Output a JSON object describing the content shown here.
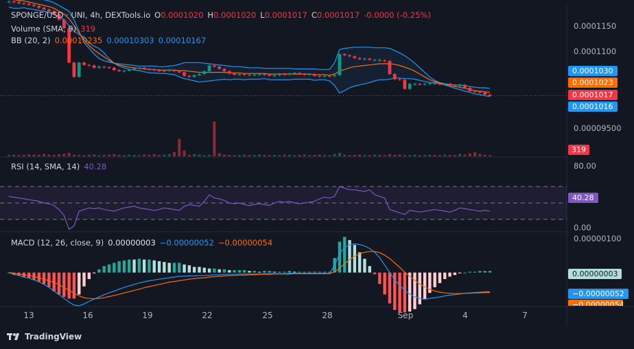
{
  "header": {
    "symbol": "SPONGE/USD · UNI, 4h, DEXTools.io",
    "open_label": "O",
    "open": "0.0001020",
    "high_label": "H",
    "high": "0.0001020",
    "low_label": "L",
    "low": "0.0001017",
    "close_label": "C",
    "close": "0.0001017",
    "change": "-0.0000 (-0.25%)"
  },
  "volume_legend": {
    "label": "Volume (SMA, 9)",
    "value": "319"
  },
  "bb_legend": {
    "label": "BB (20, 2)",
    "basis": "0.00010235",
    "upper": "0.00010303",
    "lower": "0.00010167"
  },
  "rsi_legend": {
    "label": "RSI (14, SMA, 14)",
    "value": "40.28"
  },
  "macd_legend": {
    "label": "MACD (12, 26, close, 9)",
    "hist": "0.00000003",
    "macd": "−0.00000052",
    "signal": "−0.00000054"
  },
  "price_axis": {
    "ticks": [
      "0.0001150",
      "0.0001100",
      "0.00009500"
    ]
  },
  "price_badges": {
    "upper": "0.0001030",
    "basis": "0.0001023",
    "close": "0.0001017",
    "lower": "0.0001016",
    "volume": "319"
  },
  "rsi_axis": {
    "ticks": [
      "80.00",
      "0.00"
    ],
    "badge": "40.28"
  },
  "macd_axis": {
    "ticks": [
      "0.00000100"
    ],
    "badge_hist": "0.00000003",
    "badge_macd": "−0.00000052",
    "badge_signal": "−0.00000054"
  },
  "time_axis": {
    "labels": [
      "13",
      "16",
      "19",
      "22",
      "25",
      "28",
      "Sep",
      "4",
      "7"
    ]
  },
  "footer": {
    "brand": "TradingView"
  },
  "colors": {
    "bg": "#131722",
    "up": "#089981",
    "down": "#f23645",
    "bb": "#2196f3",
    "basis": "#ff6d00",
    "rsi": "#7e57c2",
    "macd": "#2196f3",
    "signal": "#ff6d00",
    "hist_up_strong": "#26a69a",
    "hist_up_weak": "#b2dfdb",
    "hist_down_strong": "#ff5252",
    "hist_down_weak": "#ffcdd2"
  },
  "chart_data": {
    "type": "line",
    "price_ylim": [
      9.35e-05,
      0.0001175
    ],
    "price": [
      0.0001182,
      0.0001181,
      0.0001179,
      0.0001178,
      0.0001176,
      0.0001174,
      0.0001171,
      0.0001168,
      0.0001165,
      0.000116,
      0.000115,
      0.0001135,
      0.0001075,
      0.000105,
      0.0001075,
      0.0001071,
      0.000107,
      0.0001066,
      0.0001068,
      0.0001067,
      0.0001066,
      0.0001062,
      0.000106,
      0.0001061,
      0.0001063,
      0.0001065,
      0.0001066,
      0.0001064,
      0.0001063,
      0.0001062,
      0.000106,
      0.0001061,
      0.0001062,
      0.000106,
      0.0001058,
      0.0001052,
      0.000105,
      0.0001053,
      0.0001055,
      0.000106,
      0.000107,
      0.0001068,
      0.0001064,
      0.000106,
      0.0001056,
      0.0001054,
      0.0001055,
      0.0001054,
      0.0001053,
      0.0001054,
      0.0001055,
      0.0001054,
      0.0001052,
      0.0001053,
      0.0001055,
      0.0001054,
      0.0001056,
      0.0001057,
      0.0001055,
      0.0001054,
      0.0001055,
      0.0001052,
      0.0001051,
      0.0001052,
      0.0001051,
      0.0001053,
      0.000109,
      0.0001088,
      0.0001086,
      0.0001083,
      0.0001081,
      0.0001082,
      0.000108,
      0.000108,
      0.0001079,
      0.0001078,
      0.0001055,
      0.0001046,
      0.0001045,
      0.0001029,
      0.0001038,
      0.0001038,
      0.0001037,
      0.0001038,
      0.0001039,
      0.0001038,
      0.0001037,
      0.0001038,
      0.0001035,
      0.0001034,
      0.0001036,
      0.0001031,
      0.0001025,
      0.0001024,
      0.0001023,
      0.0001019,
      0.0001017
    ],
    "bb_upper": [
      0.00012,
      0.00012,
      0.0001198,
      0.0001195,
      0.0001193,
      0.000119,
      0.0001188,
      0.0001185,
      0.0001183,
      0.000118,
      0.0001175,
      0.000117,
      0.0001165,
      0.000115,
      0.000113,
      0.000111,
      0.00011,
      0.000109,
      0.0001082,
      0.0001078,
      0.0001076,
      0.0001074,
      0.0001073,
      0.0001072,
      0.0001071,
      0.000107,
      0.0001069,
      0.0001069,
      0.0001069,
      0.0001069,
      0.0001068,
      0.0001068,
      0.0001069,
      0.000107,
      0.0001072,
      0.0001075,
      0.0001075,
      0.0001075,
      0.0001075,
      0.0001074,
      0.0001073,
      0.0001072,
      0.0001071,
      0.000107,
      0.0001069,
      0.0001068,
      0.0001068,
      0.0001067,
      0.0001066,
      0.0001066,
      0.0001066,
      0.0001065,
      0.0001065,
      0.0001065,
      0.0001065,
      0.0001065,
      0.0001065,
      0.0001064,
      0.0001064,
      0.0001064,
      0.0001064,
      0.0001064,
      0.0001063,
      0.0001063,
      0.0001063,
      0.0001075,
      0.0001098,
      0.00011,
      0.0001101,
      0.0001102,
      0.0001102,
      0.0001102,
      0.0001102,
      0.0001101,
      0.0001101,
      0.0001101,
      0.00011,
      0.0001096,
      0.0001092,
      0.0001087,
      0.0001081,
      0.0001074,
      0.0001066,
      0.0001058,
      0.000105,
      0.0001044,
      0.000104,
      0.0001038,
      0.0001037,
      0.0001036,
      0.0001036,
      0.0001035,
      0.0001033,
      0.0001032,
      0.0001031,
      0.0001031,
      0.000103
    ],
    "bb_basis": [
      0.0001186,
      0.0001185,
      0.0001184,
      0.0001183,
      0.0001181,
      0.0001179,
      0.0001177,
      0.0001175,
      0.0001173,
      0.000117,
      0.0001165,
      0.000116,
      0.0001152,
      0.000114,
      0.0001127,
      0.0001115,
      0.0001105,
      0.0001097,
      0.0001091,
      0.0001085,
      0.0001079,
      0.0001074,
      0.0001071,
      0.0001069,
      0.0001067,
      0.0001066,
      0.0001065,
      0.0001064,
      0.0001063,
      0.0001063,
      0.0001062,
      0.0001062,
      0.0001062,
      0.0001062,
      0.0001061,
      0.0001061,
      0.000106,
      0.0001059,
      0.0001058,
      0.0001058,
      0.0001058,
      0.0001058,
      0.0001058,
      0.0001058,
      0.0001057,
      0.0001057,
      0.0001057,
      0.0001056,
      0.0001056,
      0.0001056,
      0.0001056,
      0.0001056,
      0.0001055,
      0.0001055,
      0.0001055,
      0.0001055,
      0.0001055,
      0.0001055,
      0.0001055,
      0.0001055,
      0.0001055,
      0.0001054,
      0.0001054,
      0.0001054,
      0.0001053,
      0.0001055,
      0.000106,
      0.0001063,
      0.0001066,
      0.0001068,
      0.0001069,
      0.000107,
      0.0001071,
      0.0001072,
      0.0001073,
      0.0001073,
      0.0001073,
      0.0001072,
      0.000107,
      0.0001067,
      0.0001064,
      0.000106,
      0.0001055,
      0.000105,
      0.0001045,
      0.0001042,
      0.0001039,
      0.0001037,
      0.0001035,
      0.0001033,
      0.0001032,
      0.000103,
      0.0001028,
      0.0001026,
      0.0001025,
      0.0001024,
      0.0001023
    ],
    "bb_lower": [
      0.0001172,
      0.000117,
      0.000117,
      0.0001171,
      0.0001169,
      0.0001168,
      0.0001166,
      0.0001165,
      0.0001163,
      0.000116,
      0.0001155,
      0.000115,
      0.0001139,
      0.000113,
      0.0001124,
      0.000112,
      0.000111,
      0.0001104,
      0.00011,
      0.0001092,
      0.0001082,
      0.0001074,
      0.0001069,
      0.0001066,
      0.0001063,
      0.0001062,
      0.0001061,
      0.0001059,
      0.0001057,
      0.0001057,
      0.0001056,
      0.0001056,
      0.0001055,
      0.0001054,
      0.000105,
      0.0001047,
      0.0001045,
      0.0001043,
      0.0001041,
      0.0001042,
      0.0001043,
      0.0001044,
      0.0001045,
      0.0001046,
      0.0001045,
      0.0001046,
      0.0001046,
      0.0001045,
      0.0001046,
      0.0001046,
      0.0001046,
      0.0001047,
      0.0001045,
      0.0001045,
      0.0001045,
      0.0001045,
      0.0001045,
      0.0001046,
      0.0001046,
      0.0001046,
      0.0001046,
      0.0001044,
      0.0001045,
      0.0001045,
      0.0001043,
      0.0001035,
      0.0001022,
      0.0001026,
      0.0001031,
      0.0001034,
      0.0001036,
      0.0001038,
      0.000104,
      0.0001043,
      0.0001045,
      0.0001045,
      0.0001046,
      0.0001048,
      0.0001048,
      0.0001047,
      0.0001047,
      0.0001046,
      0.0001044,
      0.0001042,
      0.000104,
      0.000104,
      0.0001038,
      0.0001036,
      0.0001033,
      0.000103,
      0.0001028,
      0.0001025,
      0.0001023,
      0.000102,
      0.0001019,
      0.0001017,
      0.0001016
    ],
    "volume": [
      5,
      6,
      4,
      5,
      7,
      6,
      5,
      8,
      6,
      5,
      7,
      9,
      12,
      6,
      5,
      4,
      5,
      6,
      4,
      5,
      6,
      7,
      5,
      4,
      6,
      5,
      4,
      6,
      5,
      7,
      5,
      6,
      8,
      15,
      60,
      20,
      5,
      8,
      6,
      4,
      5,
      120,
      10,
      6,
      5,
      4,
      5,
      6,
      4,
      5,
      6,
      5,
      4,
      5,
      4,
      6,
      5,
      4,
      5,
      6,
      4,
      5,
      6,
      5,
      4,
      8,
      12,
      6,
      4,
      5,
      6,
      5,
      4,
      6,
      5,
      4,
      8,
      5,
      6,
      4,
      5,
      6,
      4,
      5,
      6,
      5,
      4,
      6,
      5,
      4,
      8,
      6,
      10,
      14,
      8,
      5,
      4
    ],
    "rsi_ylim": [
      0,
      100
    ],
    "rsi": [
      58,
      57,
      56,
      55,
      54,
      53,
      52,
      50,
      49,
      47,
      42,
      35,
      18,
      22,
      40,
      42,
      44,
      43,
      44,
      42,
      41,
      40,
      42,
      44,
      45,
      46,
      44,
      43,
      42,
      41,
      42,
      44,
      43,
      42,
      41,
      46,
      48,
      47,
      46,
      52,
      60,
      56,
      55,
      53,
      50,
      49,
      50,
      48,
      47,
      48,
      49,
      48,
      47,
      50,
      52,
      51,
      52,
      50,
      49,
      50,
      51,
      52,
      55,
      57,
      56,
      58,
      70,
      68,
      66,
      66,
      65,
      64,
      66,
      60,
      58,
      56,
      42,
      40,
      38,
      36,
      41,
      40,
      39,
      40,
      41,
      42,
      41,
      40,
      39,
      41,
      44,
      43,
      42,
      41,
      40,
      41,
      40
    ],
    "macd_ylim": [
      -9e-07,
      1.05e-06
    ],
    "macd": [
      0,
      -5e-08,
      -8e-08,
      -1.2e-07,
      -1.5e-07,
      -2e-07,
      -2.5e-07,
      -3.2e-07,
      -4e-07,
      -5e-07,
      -6e-07,
      -7e-07,
      -8e-07,
      -8.8e-07,
      -9e-07,
      -8.5e-07,
      -7.8e-07,
      -7.2e-07,
      -6.6e-07,
      -6e-07,
      -5.5e-07,
      -5e-07,
      -4.5e-07,
      -4e-07,
      -3.6e-07,
      -3.2e-07,
      -2.8e-07,
      -2.5e-07,
      -2.2e-07,
      -2e-07,
      -1.8e-07,
      -1.6e-07,
      -1.4e-07,
      -1.2e-07,
      -1e-07,
      -1e-07,
      -9e-08,
      -9e-08,
      -8e-08,
      -8e-08,
      -7e-08,
      -6e-08,
      -6e-08,
      -5e-08,
      -5e-08,
      -5e-08,
      -4e-08,
      -4e-08,
      -4e-08,
      -4e-08,
      -4e-08,
      -3e-08,
      -3e-08,
      -3e-08,
      -3e-08,
      -3e-08,
      -2e-08,
      -2e-08,
      -2e-08,
      -2e-08,
      -2e-08,
      -2e-08,
      -2e-08,
      -2e-08,
      -2e-08,
      2e-07,
      5e-07,
      6.8e-07,
      7.5e-07,
      7.8e-07,
      7.6e-07,
      7.2e-07,
      6.5e-07,
      5.5e-07,
      4e-07,
      2e-07,
      0.0,
      -2e-07,
      -3.5e-07,
      -4.8e-07,
      -5.8e-07,
      -6.6e-07,
      -7e-07,
      -7.2e-07,
      -7e-07,
      -6.8e-07,
      -6.6e-07,
      -6.3e-07,
      -6.1e-07,
      -6e-07,
      -5.8e-07,
      -5.6e-07,
      -5.5e-07,
      -5.4e-07,
      -5.3e-07,
      -5.2e-07,
      -5.2e-07
    ],
    "signal": [
      0,
      -2e-08,
      -4e-08,
      -6e-08,
      -8e-08,
      -1.1e-07,
      -1.4e-07,
      -1.8e-07,
      -2.2e-07,
      -2.7e-07,
      -3.3e-07,
      -4e-07,
      -4.8e-07,
      -5.6e-07,
      -6.3e-07,
      -6.8e-07,
      -7e-07,
      -7.1e-07,
      -7e-07,
      -6.8e-07,
      -6.5e-07,
      -6.2e-07,
      -5.9e-07,
      -5.5e-07,
      -5.2e-07,
      -4.8e-07,
      -4.5e-07,
      -4.1e-07,
      -3.8e-07,
      -3.5e-07,
      -3.2e-07,
      -2.9e-07,
      -2.6e-07,
      -2.4e-07,
      -2.2e-07,
      -2e-07,
      -1.8e-07,
      -1.6e-07,
      -1.5e-07,
      -1.4e-07,
      -1.2e-07,
      -1.1e-07,
      -1e-07,
      -9e-08,
      -8e-08,
      -8e-08,
      -7e-08,
      -7e-08,
      -6e-08,
      -6e-08,
      -5e-08,
      -5e-08,
      -5e-08,
      -4e-08,
      -4e-08,
      -4e-08,
      -4e-08,
      -3e-08,
      -3e-08,
      -3e-08,
      -3e-08,
      -3e-08,
      -3e-08,
      -3e-08,
      -3e-08,
      2e-08,
      1.2e-07,
      2.4e-07,
      3.5e-07,
      4.4e-07,
      5.1e-07,
      5.5e-07,
      5.7e-07,
      5.7e-07,
      5.4e-07,
      4.7e-07,
      3.8e-07,
      2.6e-07,
      1.4e-07,
      1e-08,
      -1e-07,
      -2.1e-07,
      -3.1e-07,
      -3.9e-07,
      -4.5e-07,
      -5e-07,
      -5.3e-07,
      -5.5e-07,
      -5.6e-07,
      -5.7e-07,
      -5.7e-07,
      -5.6e-07,
      -5.6e-07,
      -5.5e-07,
      -5.5e-07,
      -5.4e-07,
      -5.4e-07
    ]
  }
}
